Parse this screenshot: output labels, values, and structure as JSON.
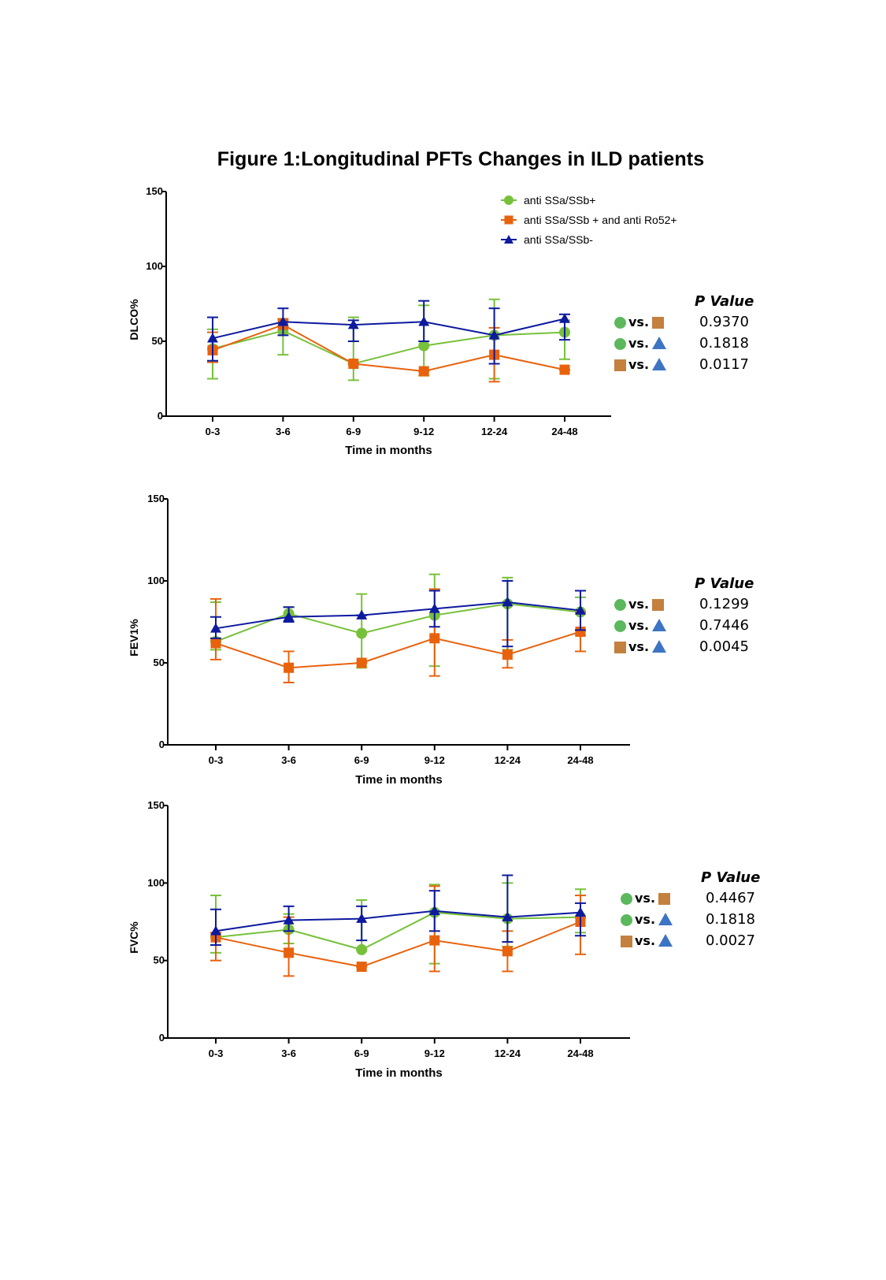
{
  "figure": {
    "title": "Figure 1:Longitudinal PFTs Changes in ILD patients"
  },
  "legend": {
    "items": [
      {
        "label": "anti SSa/SSb+",
        "marker": "circle",
        "color": "#77c13a"
      },
      {
        "label": "anti SSa/SSb + and anti Ro52+",
        "marker": "square",
        "color": "#e8620e"
      },
      {
        "label": "anti SSa/SSb-",
        "marker": "triangle",
        "color": "#0d1a9e"
      }
    ]
  },
  "pvalue_panel": {
    "title": "P Value",
    "vs_label": "vs.",
    "symbol_colors": {
      "circle": "#5cb85c",
      "square": "#c4803e",
      "triangle": "#3d74c4"
    }
  },
  "chart_data": [
    {
      "type": "line",
      "ylabel": "DLCO%",
      "xlabel": "Time in months",
      "ylim": [
        0,
        150
      ],
      "yticks": [
        "0",
        "50",
        "100",
        "150"
      ],
      "categories": [
        "0-3",
        "3-6",
        "6-9",
        "9-12",
        "12-24",
        "24-48"
      ],
      "series": [
        {
          "name": "anti SSa/SSb+",
          "values": [
            45,
            57,
            35,
            47,
            54,
            56
          ],
          "err_low": [
            25,
            41,
            24,
            27,
            25,
            38
          ],
          "err_high": [
            58,
            64,
            66,
            74,
            78,
            64
          ]
        },
        {
          "name": "anti SSa/SSb + and anti Ro52+",
          "values": [
            44,
            61,
            35,
            30,
            41,
            31
          ],
          "err_low": [
            36,
            60,
            35,
            30,
            23,
            31
          ],
          "err_high": [
            56,
            65,
            35,
            30,
            59,
            31
          ]
        },
        {
          "name": "anti SSa/SSb-",
          "values": [
            52,
            63,
            61,
            63,
            54,
            65
          ],
          "err_low": [
            37,
            54,
            50,
            50,
            35,
            51
          ],
          "err_high": [
            66,
            72,
            64,
            77,
            72,
            68
          ]
        }
      ],
      "pvalues": [
        {
          "a": "circle",
          "b": "square",
          "value": "0.9370"
        },
        {
          "a": "circle",
          "b": "triangle",
          "value": "0.1818"
        },
        {
          "a": "square",
          "b": "triangle",
          "value": "0.0117"
        }
      ]
    },
    {
      "type": "line",
      "ylabel": "FEV1%",
      "xlabel": "Time in months",
      "ylim": [
        0,
        150
      ],
      "yticks": [
        "0",
        "50",
        "100",
        "150"
      ],
      "categories": [
        "0-3",
        "3-6",
        "6-9",
        "9-12",
        "12-24",
        "24-48"
      ],
      "series": [
        {
          "name": "anti SSa/SSb+",
          "values": [
            63,
            80,
            68,
            79,
            86,
            81
          ],
          "err_low": [
            58,
            75,
            47,
            48,
            58,
            67
          ],
          "err_high": [
            87,
            84,
            92,
            104,
            102,
            90
          ]
        },
        {
          "name": "anti SSa/SSb + and anti Ro52+",
          "values": [
            62,
            47,
            50,
            65,
            55,
            69
          ],
          "err_low": [
            52,
            38,
            50,
            42,
            47,
            57
          ],
          "err_high": [
            89,
            57,
            50,
            95,
            64,
            81
          ]
        },
        {
          "name": "anti SSa/SSb-",
          "values": [
            71,
            78,
            79,
            83,
            87,
            82
          ],
          "err_low": [
            65,
            75,
            79,
            72,
            60,
            70
          ],
          "err_high": [
            78,
            84,
            79,
            94,
            100,
            94
          ]
        }
      ],
      "pvalues": [
        {
          "a": "circle",
          "b": "square",
          "value": "0.1299"
        },
        {
          "a": "circle",
          "b": "triangle",
          "value": "0.7446"
        },
        {
          "a": "square",
          "b": "triangle",
          "value": "0.0045"
        }
      ]
    },
    {
      "type": "line",
      "ylabel": "FVC%",
      "xlabel": "Time in months",
      "ylim": [
        0,
        150
      ],
      "yticks": [
        "0",
        "50",
        "100",
        "150"
      ],
      "categories": [
        "0-3",
        "3-6",
        "6-9",
        "9-12",
        "12-24",
        "24-48"
      ],
      "series": [
        {
          "name": "anti SSa/SSb+",
          "values": [
            65,
            70,
            57,
            81,
            77,
            78
          ],
          "err_low": [
            55,
            61,
            57,
            48,
            59,
            68
          ],
          "err_high": [
            92,
            80,
            89,
            99,
            100,
            96
          ]
        },
        {
          "name": "anti SSa/SSb + and anti Ro52+",
          "values": [
            65,
            55,
            46,
            63,
            56,
            75
          ],
          "err_low": [
            50,
            40,
            46,
            43,
            43,
            54
          ],
          "err_high": [
            68,
            78,
            46,
            98,
            69,
            92
          ]
        },
        {
          "name": "anti SSa/SSb-",
          "values": [
            69,
            76,
            77,
            82,
            78,
            81
          ],
          "err_low": [
            60,
            69,
            63,
            69,
            62,
            66
          ],
          "err_high": [
            83,
            85,
            85,
            95,
            105,
            87
          ]
        }
      ],
      "pvalues": [
        {
          "a": "circle",
          "b": "square",
          "value": "0.4467"
        },
        {
          "a": "circle",
          "b": "triangle",
          "value": "0.1818"
        },
        {
          "a": "square",
          "b": "triangle",
          "value": "0.0027"
        }
      ]
    }
  ]
}
